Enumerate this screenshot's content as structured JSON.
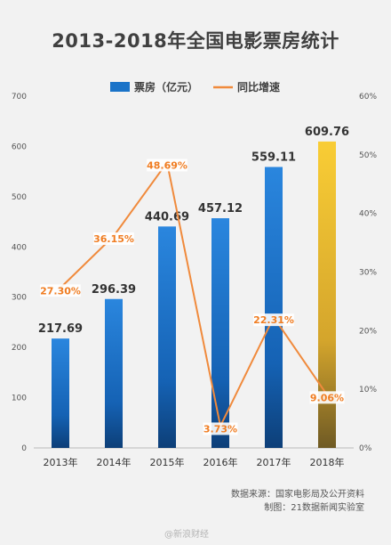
{
  "chart_data": {
    "type": "bar",
    "title": "2013-2018年全国电影票房统计",
    "categories": [
      "2013年",
      "2014年",
      "2015年",
      "2016年",
      "2017年",
      "2018年"
    ],
    "series": [
      {
        "name": "票房（亿元）",
        "type": "bar",
        "axis": "left",
        "values": [
          217.69,
          296.39,
          440.69,
          457.12,
          559.11,
          609.76
        ],
        "labels": [
          "217.69",
          "296.39",
          "440.69",
          "457.12",
          "559.11",
          "609.76"
        ],
        "color": "#1a73c8",
        "highlight_color": "#f5c52a"
      },
      {
        "name": "同比增速",
        "type": "line",
        "axis": "right",
        "values": [
          27.3,
          36.15,
          48.69,
          3.73,
          22.31,
          9.06
        ],
        "labels": [
          "27.30%",
          "36.15%",
          "48.69%",
          "3.73%",
          "22.31%",
          "9.06%"
        ],
        "color": "#f08a3c"
      }
    ],
    "ylim": [
      0,
      700
    ],
    "yticks": [
      "0",
      "100",
      "200",
      "300",
      "400",
      "500",
      "600",
      "700"
    ],
    "y2lim": [
      0,
      60
    ],
    "y2ticks": [
      "0%",
      "10%",
      "20%",
      "30%",
      "40%",
      "50%",
      "60%"
    ],
    "grid": false,
    "legend": "top-center"
  },
  "footer": {
    "source": "数据来源：国家电影局及公开资料",
    "maker": "制图：21数据新闻实验室"
  },
  "watermark": "@新浪财经"
}
